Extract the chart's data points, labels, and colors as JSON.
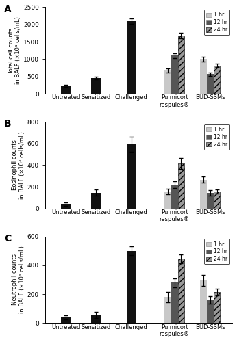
{
  "panels": [
    {
      "label": "A",
      "ylabel": "Total cell counts\nin BALF (×10⁴ cells/mL)",
      "ylim": [
        0,
        2500
      ],
      "yticks": [
        0,
        500,
        1000,
        1500,
        2000,
        2500
      ],
      "bar_values": {
        "Untreated": [
          220,
          null,
          null
        ],
        "Sensitized": [
          450,
          null,
          null
        ],
        "Challenged": [
          2100,
          null,
          null
        ],
        "Pulmicort\nrespules®": [
          680,
          1100,
          1680
        ],
        "BUD-SSMs": [
          1000,
          570,
          820
        ]
      },
      "bar_errors": {
        "Untreated": [
          30,
          null,
          null
        ],
        "Sensitized": [
          40,
          null,
          null
        ],
        "Challenged": [
          80,
          null,
          null
        ],
        "Pulmicort\nrespules®": [
          60,
          70,
          80
        ],
        "BUD-SSMs": [
          70,
          50,
          50
        ]
      }
    },
    {
      "label": "B",
      "ylabel": "Eosinophil counts\nin BALF (×10⁴ cells/mL)",
      "ylim": [
        0,
        800
      ],
      "yticks": [
        0,
        200,
        400,
        600,
        800
      ],
      "bar_values": {
        "Untreated": [
          40,
          null,
          null
        ],
        "Sensitized": [
          145,
          null,
          null
        ],
        "Challenged": [
          590,
          null,
          null
        ],
        "Pulmicort\nrespules®": [
          155,
          220,
          415
        ],
        "BUD-SSMs": [
          265,
          145,
          155
        ]
      },
      "bar_errors": {
        "Untreated": [
          15,
          null,
          null
        ],
        "Sensitized": [
          30,
          null,
          null
        ],
        "Challenged": [
          70,
          null,
          null
        ],
        "Pulmicort\nrespules®": [
          25,
          30,
          50
        ],
        "BUD-SSMs": [
          30,
          25,
          20
        ]
      }
    },
    {
      "label": "C",
      "ylabel": "Neutrophil counts\nin BALF (×10⁴ cells/mL)",
      "ylim": [
        0,
        600
      ],
      "yticks": [
        0,
        200,
        400,
        600
      ],
      "bar_values": {
        "Untreated": [
          38,
          null,
          null
        ],
        "Sensitized": [
          55,
          null,
          null
        ],
        "Challenged": [
          500,
          null,
          null
        ],
        "Pulmicort\nrespules®": [
          180,
          280,
          445
        ],
        "BUD-SSMs": [
          295,
          160,
          215
        ]
      },
      "bar_errors": {
        "Untreated": [
          15,
          null,
          null
        ],
        "Sensitized": [
          20,
          null,
          null
        ],
        "Challenged": [
          30,
          null,
          null
        ],
        "Pulmicort\nrespules®": [
          35,
          30,
          30
        ],
        "BUD-SSMs": [
          40,
          25,
          25
        ]
      }
    }
  ],
  "color_single": "#111111",
  "color_1hr": "#c8c8c8",
  "color_12hr": "#555555",
  "color_24hr": "#999999",
  "hatch_1hr": "",
  "hatch_12hr": "",
  "hatch_24hr": "////",
  "bar_width": 0.23,
  "figure_size": [
    3.46,
    5.0
  ],
  "dpi": 100,
  "legend_labels": [
    "1 hr",
    "12 hr",
    "24 hr"
  ]
}
